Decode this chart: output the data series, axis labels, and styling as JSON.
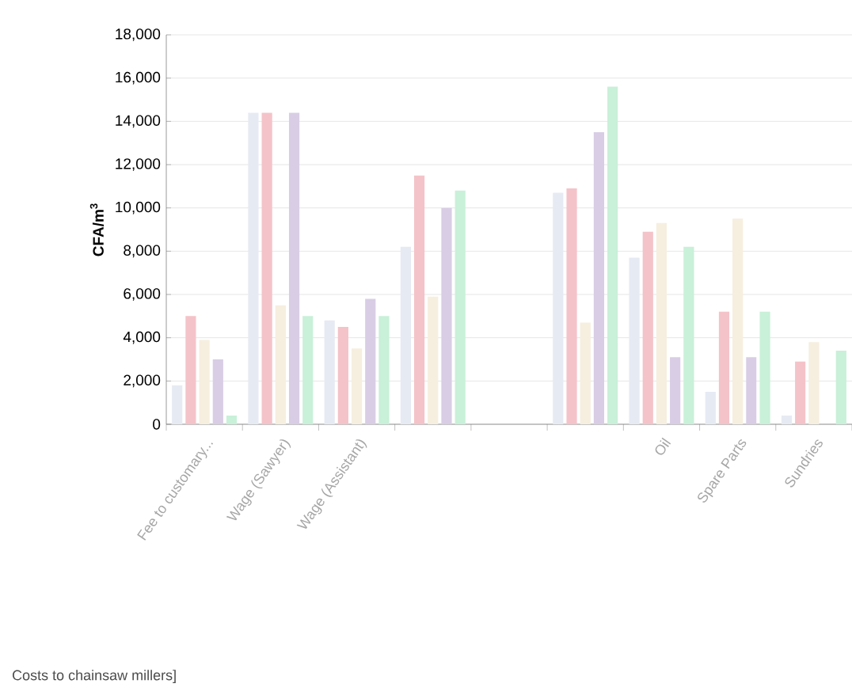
{
  "chart_data": {
    "type": "bar",
    "ylabel": "CFA/m$^{3}$",
    "categories": [
      "Fee to customary...",
      "Wage (Sawyer)",
      "Wage (Assistant)",
      null,
      null,
      null,
      "Oil",
      "Spare Parts",
      "Sundries"
    ],
    "series": [
      {
        "color": "#e6eaf3",
        "values": [
          1800,
          14400,
          4800,
          8200,
          null,
          10700,
          7700,
          1500,
          400
        ]
      },
      {
        "color": "#f4c3c9",
        "values": [
          5000,
          14400,
          4500,
          11500,
          null,
          10900,
          8900,
          5200,
          2900
        ]
      },
      {
        "color": "#f6eedf",
        "values": [
          3900,
          5500,
          3500,
          5900,
          null,
          4700,
          9300,
          9500,
          3800
        ]
      },
      {
        "color": "#d9cde5",
        "values": [
          3000,
          14400,
          5800,
          10000,
          null,
          13500,
          3100,
          3100,
          null
        ]
      },
      {
        "color": "#c9f0d9",
        "values": [
          400,
          5000,
          5000,
          10800,
          null,
          15600,
          8200,
          5200,
          3400
        ]
      }
    ],
    "ylim": [
      0,
      18000
    ],
    "yticks": [
      {
        "value": 0,
        "label": "0"
      },
      {
        "value": 2000,
        "label": "2,000"
      },
      {
        "value": 4000,
        "label": "4,000"
      },
      {
        "value": 6000,
        "label": "6,000"
      },
      {
        "value": 8000,
        "label": "8,000"
      },
      {
        "value": 10000,
        "label": "10,000"
      },
      {
        "value": 12000,
        "label": "12,000"
      },
      {
        "value": 14000,
        "label": "14,000"
      },
      {
        "value": 16000,
        "label": "16,000"
      },
      {
        "value": 18000,
        "label": "18,000"
      }
    ],
    "grid": "y",
    "annotations": [
      "Costs to chainsaw millers]"
    ]
  }
}
